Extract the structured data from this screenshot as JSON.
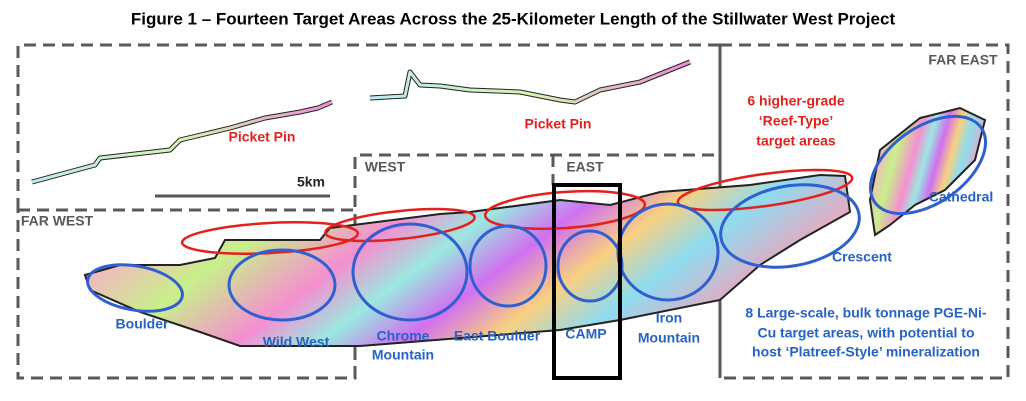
{
  "title": "Figure 1 – Fourteen Target Areas Across the 25-Kilometer Length of the Stillwater West Project",
  "regions": {
    "far_east": "FAR EAST",
    "west": "WEST",
    "east": "EAST",
    "far_west": "FAR WEST"
  },
  "scale_label": "5km",
  "picket_pin": [
    "Picket Pin",
    "Picket Pin"
  ],
  "reef_note": [
    "6 higher-grade",
    "‘Reef-Type’",
    "target areas"
  ],
  "targets": {
    "boulder": [
      "Boulder"
    ],
    "wild_west": [
      "Wild West"
    ],
    "chrome_mountain": [
      "Chrome",
      "Mountain"
    ],
    "east_boulder": [
      "East Boulder"
    ],
    "camp": [
      "CAMP"
    ],
    "iron_mountain": [
      "Iron",
      "Mountain"
    ],
    "crescent": [
      "Crescent"
    ],
    "cathedral": [
      "Cathedral"
    ]
  },
  "platreef_note": [
    "8 Large-scale, bulk tonnage PGE-Ni-",
    "Cu target areas, with potential to",
    "host ‘Platreef-Style’ mineralization"
  ]
}
